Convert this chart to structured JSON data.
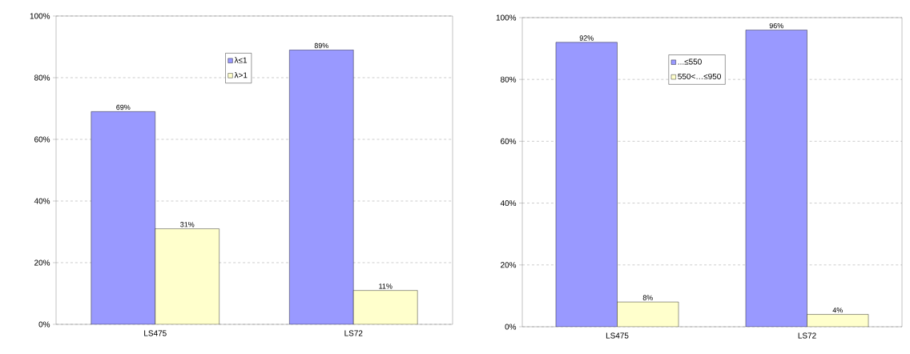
{
  "chart_data": [
    {
      "type": "bar",
      "categories": [
        "LS475",
        "LS72"
      ],
      "series": [
        {
          "name": "λ≤1",
          "color": "#9999ff",
          "values": [
            69,
            89
          ],
          "value_labels": [
            "69%",
            "89%"
          ]
        },
        {
          "name": "λ>1",
          "color": "#ffffcc",
          "values": [
            31,
            11
          ],
          "value_labels": [
            "31%",
            "11%"
          ]
        }
      ],
      "ylim": [
        0,
        100
      ],
      "yticks": [
        {
          "value": 0,
          "label": "0%"
        },
        {
          "value": 20,
          "label": "20%"
        },
        {
          "value": 40,
          "label": "40%"
        },
        {
          "value": 60,
          "label": "60%"
        },
        {
          "value": 80,
          "label": "80%"
        },
        {
          "value": 100,
          "label": "100%"
        }
      ],
      "grid": "y",
      "legend": "top"
    },
    {
      "type": "bar",
      "categories": [
        "LS475",
        "LS72"
      ],
      "series": [
        {
          "name": "...≤550",
          "color": "#9999ff",
          "values": [
            92,
            96
          ],
          "value_labels": [
            "92%",
            "96%"
          ]
        },
        {
          "name": "550<…≤950",
          "color": "#ffffcc",
          "values": [
            8,
            4
          ],
          "value_labels": [
            "8%",
            "4%"
          ]
        }
      ],
      "ylim": [
        0,
        100
      ],
      "yticks": [
        {
          "value": 0,
          "label": "0%"
        },
        {
          "value": 20,
          "label": "20%"
        },
        {
          "value": 40,
          "label": "40%"
        },
        {
          "value": 60,
          "label": "60%"
        },
        {
          "value": 80,
          "label": "80%"
        },
        {
          "value": 100,
          "label": "100%"
        }
      ],
      "grid": "y",
      "legend": "top"
    }
  ]
}
